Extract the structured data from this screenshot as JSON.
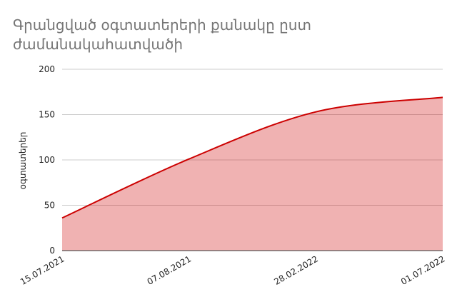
{
  "chart_data": {
    "type": "area",
    "title": "Գրանցված օգտատերերի քանակը ըստ ժամանակահատվածի",
    "y_label": "օգտատերեր",
    "categories": [
      "15.07.2021",
      "07.08.2021",
      "28.02.2022",
      "01.07.2022"
    ],
    "series": [
      {
        "name": "օգտատերեր",
        "color": "#cc0000",
        "values": [
          36,
          101,
          153,
          169
        ]
      }
    ],
    "ylim": [
      0,
      200
    ],
    "yticks": [
      0,
      50,
      100,
      150,
      200
    ],
    "grid": true
  }
}
